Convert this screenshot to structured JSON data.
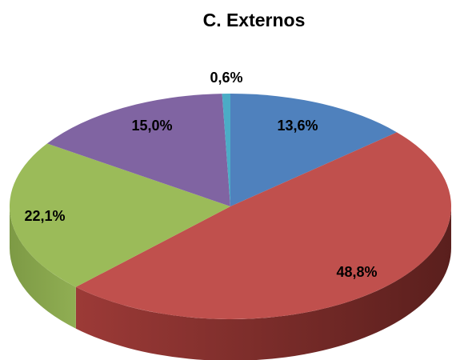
{
  "chart_data": {
    "type": "pie",
    "title": "C. Externos",
    "slices": [
      {
        "value": 13.6,
        "label": "13,6%",
        "color": "#4F81BD"
      },
      {
        "value": 48.8,
        "label": "48,8%",
        "color": "#C0504D"
      },
      {
        "value": 22.1,
        "label": "22,1%",
        "color": "#9BBB59"
      },
      {
        "value": 15.0,
        "label": "15,0%",
        "color": "#8064A2"
      },
      {
        "value": 0.6,
        "label": "0,6%",
        "color": "#4BACC6"
      }
    ],
    "legend": "none",
    "style": "3d"
  }
}
